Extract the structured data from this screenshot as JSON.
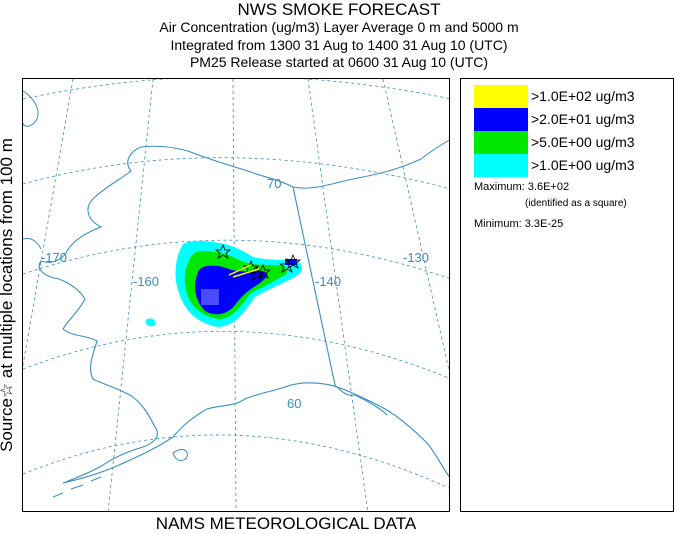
{
  "title": {
    "line1": "NWS SMOKE FORECAST",
    "line2": "Air Concentration (ug/m3) Layer Average    0 m and  5000 m",
    "line3": "Integrated from 1300 31 Aug to 1400 31 Aug 10 (UTC)",
    "line4": "PM25 Release started at 0600 31 Aug 10 (UTC)"
  },
  "side_label": "Source☆ at multiple locations    from   100 m",
  "footer": "NAMS METEOROLOGICAL DATA",
  "map": {
    "lon_labels": [
      "-170",
      "-160",
      "-140",
      "-130"
    ],
    "lat_labels": [
      "70",
      "60"
    ],
    "colors": {
      "coast": "#3a8fc0",
      "graticule": "#3a8fc0",
      "border": "#3a8fc0"
    }
  },
  "legend": {
    "items": [
      {
        "label": ">1.0E+02 ug/m3",
        "color": "#ffff00"
      },
      {
        "label": ">2.0E+01 ug/m3",
        "color": "#0000ff"
      },
      {
        "label": ">5.0E+00 ug/m3",
        "color": "#00e800"
      },
      {
        "label": ">1.0E+00 ug/m3",
        "color": "#00ffff"
      }
    ],
    "maximum_label": "Maximum:",
    "maximum_value": "3.6E+02",
    "maximum_note": "(identified as a square)",
    "minimum_label": "Minimum:",
    "minimum_value": "3.3E-25"
  }
}
